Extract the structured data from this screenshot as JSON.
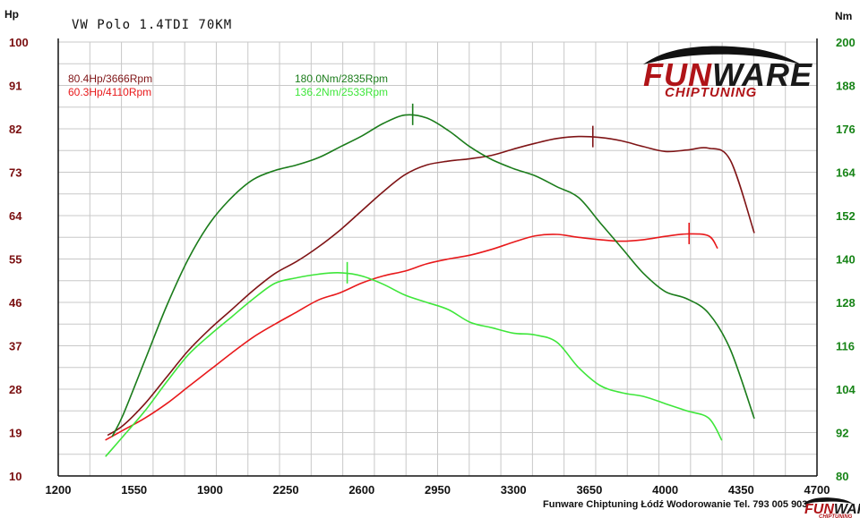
{
  "chart_data": {
    "type": "line",
    "title": "VW Polo 1.4TDI 70KM",
    "ylabel": "Hp",
    "y2label": "Nm",
    "xlim": [
      1200,
      4700
    ],
    "ylim": [
      10,
      100
    ],
    "y2lim": [
      80,
      200
    ],
    "x_ticks": [
      "1200",
      "1550",
      "1900",
      "2250",
      "2600",
      "2950",
      "3300",
      "3650",
      "4000",
      "4350",
      "4700"
    ],
    "y_ticks": [
      "10",
      "19",
      "28",
      "37",
      "46",
      "55",
      "64",
      "73",
      "82",
      "91",
      "100"
    ],
    "y2_ticks": [
      "80",
      "92",
      "104",
      "116",
      "128",
      "140",
      "152",
      "164",
      "176",
      "188",
      "200"
    ],
    "grid": true,
    "series": [
      {
        "name": "80.4Hp/3666Rpm",
        "axis": "left",
        "color": "#7f1416",
        "peak": [
          3666,
          80.4
        ],
        "x": [
          1430,
          1500,
          1600,
          1700,
          1800,
          1900,
          2000,
          2100,
          2200,
          2300,
          2400,
          2500,
          2600,
          2700,
          2800,
          2900,
          3000,
          3100,
          3200,
          3300,
          3400,
          3500,
          3600,
          3700,
          3800,
          3900,
          4000,
          4100,
          4200,
          4300,
          4410
        ],
        "y": [
          18.5,
          20.5,
          25,
          30.5,
          36,
          40.5,
          44.5,
          48.5,
          52,
          54.5,
          57.5,
          61,
          65,
          69,
          72.5,
          74.5,
          75.3,
          75.8,
          76.5,
          77.8,
          79,
          80,
          80.4,
          80.2,
          79.5,
          78.3,
          77.3,
          77.6,
          78,
          75.5,
          60.5
        ]
      },
      {
        "name": "60.3Hp/4110Rpm",
        "axis": "left",
        "color": "#e8191b",
        "peak": [
          4110,
          60.3
        ],
        "x": [
          1420,
          1500,
          1600,
          1700,
          1800,
          1900,
          2000,
          2100,
          2200,
          2300,
          2400,
          2500,
          2600,
          2700,
          2800,
          2900,
          3000,
          3100,
          3200,
          3300,
          3400,
          3500,
          3600,
          3700,
          3800,
          3900,
          4000,
          4100,
          4200,
          4240
        ],
        "y": [
          17.5,
          19.5,
          22,
          25,
          28.5,
          32,
          35.5,
          38.8,
          41.5,
          44,
          46.5,
          48,
          50,
          51.5,
          52.5,
          54,
          55,
          55.8,
          57,
          58.5,
          59.8,
          60.1,
          59.5,
          59,
          58.7,
          59,
          59.7,
          60.2,
          59.8,
          57.3
        ]
      },
      {
        "name": "180.0Nm/2835Rpm",
        "axis": "right",
        "color": "#1b7c1b",
        "peak": [
          2835,
          180.0
        ],
        "x": [
          1450,
          1500,
          1600,
          1700,
          1800,
          1900,
          2000,
          2100,
          2200,
          2300,
          2400,
          2500,
          2600,
          2700,
          2800,
          2900,
          3000,
          3100,
          3200,
          3300,
          3400,
          3500,
          3600,
          3700,
          3800,
          3900,
          4000,
          4100,
          4200,
          4300,
          4410
        ],
        "y": [
          91,
          97,
          112,
          127,
          140,
          150,
          157,
          162,
          164.5,
          166,
          168,
          171,
          174,
          177.5,
          179.8,
          179,
          175.5,
          171,
          167.5,
          165,
          163,
          160,
          157,
          150,
          143,
          136,
          131,
          129,
          125,
          115,
          96
        ]
      },
      {
        "name": "136.2Nm/2533Rpm",
        "axis": "right",
        "color": "#3ee63a",
        "peak": [
          2533,
          136.2
        ],
        "x": [
          1420,
          1500,
          1600,
          1700,
          1800,
          1900,
          2000,
          2100,
          2200,
          2300,
          2400,
          2500,
          2600,
          2700,
          2800,
          2900,
          3000,
          3100,
          3200,
          3300,
          3400,
          3500,
          3600,
          3700,
          3800,
          3900,
          4000,
          4100,
          4200,
          4260
        ],
        "y": [
          85.5,
          91,
          98,
          106,
          113.5,
          119,
          124,
          129,
          133.3,
          134.8,
          135.8,
          136.2,
          135.3,
          133,
          130,
          128,
          126,
          122.5,
          121,
          119.5,
          119,
          117,
          110,
          105,
          103,
          102,
          100,
          98,
          96,
          90
        ]
      }
    ]
  },
  "logo": {
    "brand_part1": "FUN",
    "brand_part2": "WARE",
    "tagline": "CHIPTUNING",
    "accent": "#b01418"
  },
  "footer": {
    "text": "Funware Chiptuning Łódź Wodorowanie Tel. 793 005 903"
  }
}
